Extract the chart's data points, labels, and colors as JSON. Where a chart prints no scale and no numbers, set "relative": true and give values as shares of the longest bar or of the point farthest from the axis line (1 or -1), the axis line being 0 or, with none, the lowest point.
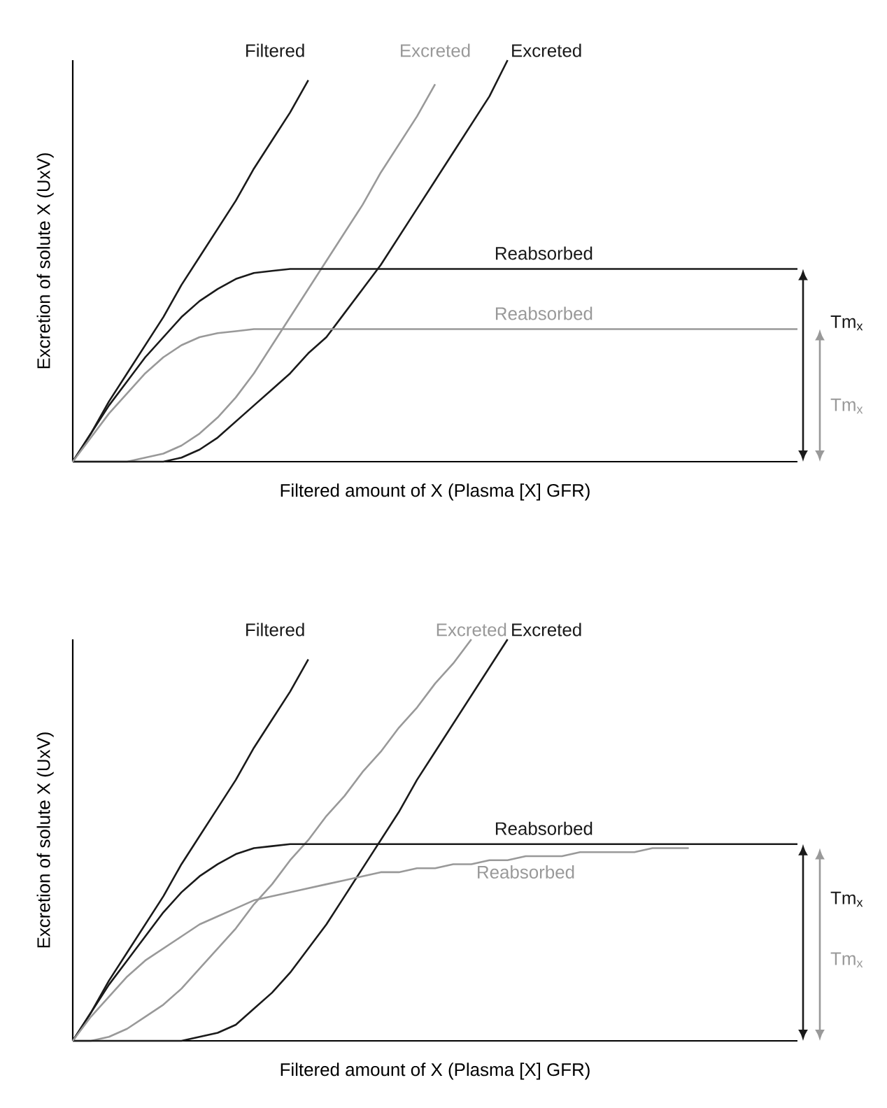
{
  "chart_data": [
    {
      "type": "line",
      "relative": true,
      "xlabel": "Filtered amount of X (Plasma [X]   GFR)",
      "ylabel": "Excretion of solute X (UxV)",
      "categories": [
        null,
        null,
        null,
        null,
        null,
        null,
        null,
        null,
        null,
        null,
        null,
        null,
        null,
        null,
        null,
        null,
        null,
        null,
        null,
        null,
        null,
        null,
        null,
        null,
        null,
        null,
        null,
        null,
        null,
        null,
        null,
        null,
        null,
        null,
        null,
        null,
        null,
        null,
        null,
        null,
        null
      ],
      "series": [
        {
          "name": "Filtered",
          "color": "#1a1a1a",
          "values": [
            0,
            0.07,
            0.15,
            0.22,
            0.29,
            0.36,
            0.44,
            0.51,
            0.58,
            0.65,
            0.73,
            0.8,
            0.87,
            0.95,
            null,
            null,
            null,
            null,
            null,
            null,
            null,
            null,
            null,
            null,
            null,
            null,
            null,
            null,
            null,
            null,
            null,
            null,
            null,
            null,
            null,
            null,
            null,
            null,
            null,
            null,
            null
          ]
        },
        {
          "name": "Excreted",
          "color": "#999999",
          "values": [
            0,
            0,
            0,
            0,
            0.01,
            0.02,
            0.04,
            0.07,
            0.11,
            0.16,
            0.22,
            0.29,
            0.36,
            0.43,
            0.5,
            0.57,
            0.64,
            0.72,
            0.79,
            0.86,
            0.94,
            null,
            null,
            null,
            null,
            null,
            null,
            null,
            null,
            null,
            null,
            null,
            null,
            null,
            null,
            null,
            null,
            null,
            null,
            null,
            null
          ]
        },
        {
          "name": "Excreted",
          "color": "#1a1a1a",
          "values": [
            0,
            0,
            0,
            0,
            0,
            0,
            0.01,
            0.03,
            0.06,
            0.1,
            0.14,
            0.18,
            0.22,
            0.27,
            0.31,
            0.37,
            0.43,
            0.49,
            0.56,
            0.63,
            0.7,
            0.77,
            0.84,
            0.91,
            1.0,
            null,
            null,
            null,
            null,
            null,
            null,
            null,
            null,
            null,
            null,
            null,
            null,
            null,
            null,
            null,
            null
          ]
        },
        {
          "name": "Reabsorbed",
          "color": "#1a1a1a",
          "values": [
            0,
            0.07,
            0.14,
            0.2,
            0.26,
            0.31,
            0.36,
            0.4,
            0.43,
            0.455,
            0.47,
            0.475,
            0.48,
            0.48,
            0.48,
            0.48,
            0.48,
            0.48,
            0.48,
            0.48,
            0.48,
            0.48,
            0.48,
            0.48,
            0.48,
            0.48,
            0.48,
            0.48,
            0.48,
            0.48,
            0.48,
            0.48,
            0.48,
            0.48,
            0.48,
            0.48,
            0.48,
            0.48,
            0.48,
            0.48,
            0.48
          ]
        },
        {
          "name": "Reabsorbed",
          "color": "#999999",
          "values": [
            0,
            0.06,
            0.12,
            0.17,
            0.22,
            0.26,
            0.29,
            0.31,
            0.32,
            0.325,
            0.33,
            0.33,
            0.33,
            0.33,
            0.33,
            0.33,
            0.33,
            0.33,
            0.33,
            0.33,
            0.33,
            0.33,
            0.33,
            0.33,
            0.33,
            0.33,
            0.33,
            0.33,
            0.33,
            0.33,
            0.33,
            0.33,
            0.33,
            0.33,
            0.33,
            0.33,
            0.33,
            0.33,
            0.33,
            0.33,
            0.33
          ]
        }
      ],
      "annotations": [
        "Tm$_{x}$",
        "Tm$_{x}$"
      ]
    },
    {
      "type": "line",
      "relative": true,
      "xlabel": "Filtered amount of X (Plasma [X]   GFR)",
      "ylabel": "Excretion of solute X (UxV)",
      "categories": [
        null,
        null,
        null,
        null,
        null,
        null,
        null,
        null,
        null,
        null,
        null,
        null,
        null,
        null,
        null,
        null,
        null,
        null,
        null,
        null,
        null,
        null,
        null,
        null,
        null,
        null,
        null,
        null,
        null,
        null,
        null,
        null,
        null,
        null,
        null,
        null,
        null,
        null,
        null,
        null,
        null
      ],
      "series": [
        {
          "name": "Filtered",
          "color": "#1a1a1a",
          "values": [
            0,
            0.07,
            0.15,
            0.22,
            0.29,
            0.36,
            0.44,
            0.51,
            0.58,
            0.65,
            0.73,
            0.8,
            0.87,
            0.95,
            null,
            null,
            null,
            null,
            null,
            null,
            null,
            null,
            null,
            null,
            null,
            null,
            null,
            null,
            null,
            null,
            null,
            null,
            null,
            null,
            null,
            null,
            null,
            null,
            null,
            null,
            null
          ]
        },
        {
          "name": "Excreted",
          "color": "#999999",
          "values": [
            0,
            0,
            0.01,
            0.03,
            0.06,
            0.09,
            0.13,
            0.18,
            0.23,
            0.28,
            0.34,
            0.39,
            0.45,
            0.5,
            0.56,
            0.61,
            0.67,
            0.72,
            0.78,
            0.83,
            0.89,
            0.94,
            1.0,
            null,
            null,
            null,
            null,
            null,
            null,
            null,
            null,
            null,
            null,
            null,
            null,
            null,
            null,
            null,
            null,
            null,
            null
          ]
        },
        {
          "name": "Excreted",
          "color": "#1a1a1a",
          "values": [
            0,
            0,
            0,
            0,
            0,
            0,
            0,
            0.01,
            0.02,
            0.04,
            0.08,
            0.12,
            0.17,
            0.23,
            0.29,
            0.36,
            0.43,
            0.5,
            0.57,
            0.65,
            0.72,
            0.79,
            0.86,
            0.93,
            1.0,
            null,
            null,
            null,
            null,
            null,
            null,
            null,
            null,
            null,
            null,
            null,
            null,
            null,
            null,
            null,
            null
          ]
        },
        {
          "name": "Reabsorbed",
          "color": "#1a1a1a",
          "values": [
            0,
            0.07,
            0.14,
            0.2,
            0.26,
            0.32,
            0.37,
            0.41,
            0.44,
            0.465,
            0.48,
            0.485,
            0.49,
            0.49,
            0.49,
            0.49,
            0.49,
            0.49,
            0.49,
            0.49,
            0.49,
            0.49,
            0.49,
            0.49,
            0.49,
            0.49,
            0.49,
            0.49,
            0.49,
            0.49,
            0.49,
            0.49,
            0.49,
            0.49,
            0.49,
            0.49,
            0.49,
            0.49,
            0.49,
            0.49,
            0.49
          ]
        },
        {
          "name": "Reabsorbed",
          "color": "#999999",
          "values": [
            0,
            0.06,
            0.11,
            0.16,
            0.2,
            0.23,
            0.26,
            0.29,
            0.31,
            0.33,
            0.35,
            0.36,
            0.37,
            0.38,
            0.39,
            0.4,
            0.41,
            0.42,
            0.42,
            0.43,
            0.43,
            0.44,
            0.44,
            0.45,
            0.45,
            0.46,
            0.46,
            0.46,
            0.47,
            0.47,
            0.47,
            0.47,
            0.48,
            0.48,
            0.48,
            null,
            null,
            null,
            null,
            null,
            null
          ]
        }
      ],
      "annotations": [
        "Tm$_{x}$",
        "Tm$_{x}$"
      ]
    }
  ]
}
